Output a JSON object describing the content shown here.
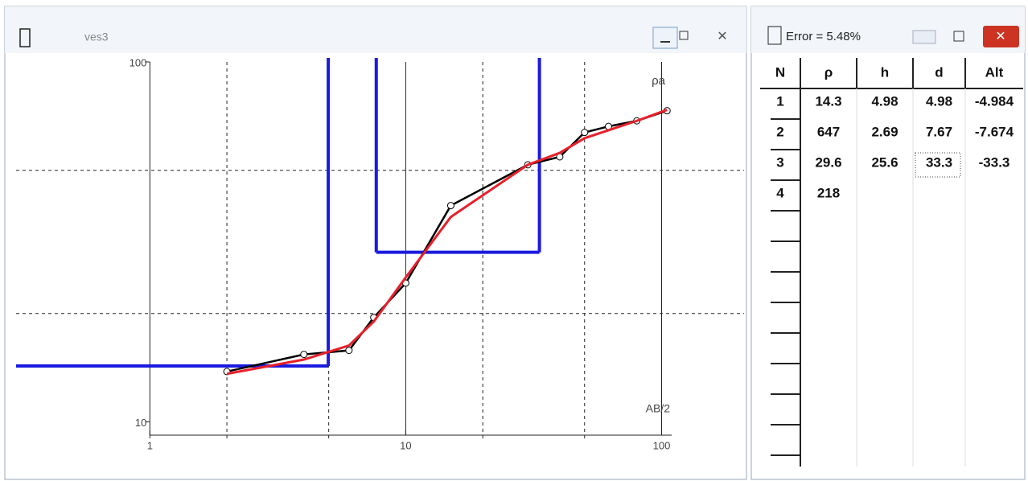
{
  "window": {
    "title": "ves3",
    "chart_data": {
      "type": "line",
      "x_label": "AB/2",
      "y_label": "ρa",
      "xscale": "log",
      "yscale": "log",
      "xlim": [
        0.3,
        210
      ],
      "ylim": [
        9,
        100
      ],
      "xticks": [
        1,
        10,
        100
      ],
      "yticks": [
        10,
        100
      ],
      "xgrid": [
        2,
        5,
        20,
        50
      ],
      "ygrid": [
        20,
        50
      ],
      "x": [
        2,
        4,
        6,
        7.5,
        10,
        15,
        30,
        40,
        50,
        62,
        80,
        105
      ],
      "series": [
        {
          "color": "#000000",
          "markers": true,
          "values": [
            13.8,
            15.4,
            15.8,
            19.5,
            24.3,
            39.9,
            51.8,
            54.5,
            63.7,
            66.2,
            68.6,
            73.2
          ]
        },
        {
          "color": "#e8202a",
          "markers": false,
          "values": [
            13.6,
            14.9,
            16.3,
            19.0,
            25.2,
            37.1,
            51.8,
            55.9,
            61.4,
            64.6,
            68.6,
            73.6
          ]
        }
      ],
      "model_color": "#1a1ae0"
    }
  },
  "panel": {
    "title": "Error = 5.48%",
    "table": {
      "header": [
        "N",
        "ρ",
        "h",
        "d",
        "Alt"
      ],
      "rows": [
        [
          1,
          14.3,
          4.98,
          4.98,
          -4.984
        ],
        [
          2,
          647,
          2.69,
          7.67,
          -7.674
        ],
        [
          3,
          29.6,
          25.6,
          33.3,
          -33.3
        ],
        [
          4,
          218
        ]
      ]
    }
  }
}
